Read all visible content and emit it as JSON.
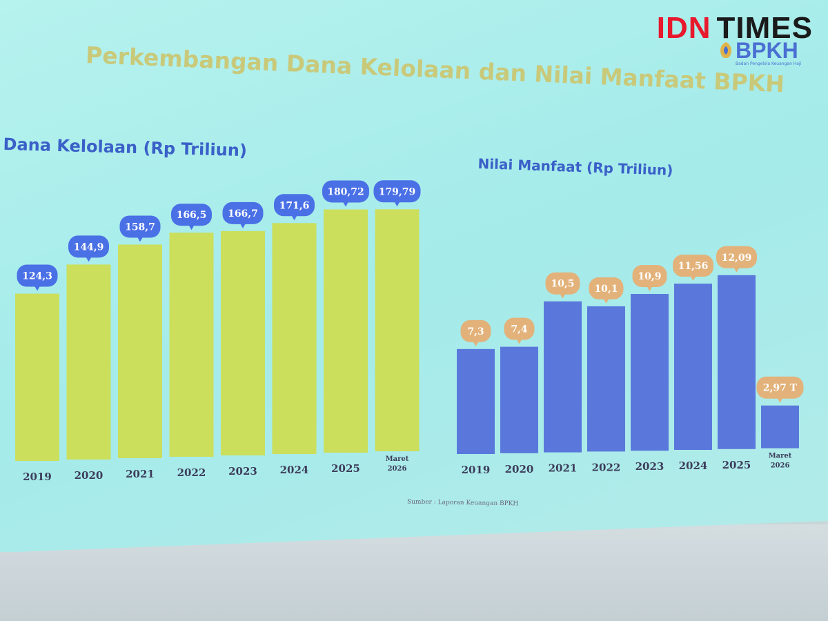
{
  "watermark": {
    "brand_red": "IDN",
    "brand_dark": "TIMES"
  },
  "logo": {
    "text": "BPKH",
    "subtitle": "Badan Pengelola Keuangan Haji"
  },
  "title": "Perkembangan Dana Kelolaan dan Nilai Manfaat BPKH",
  "source": "Sumber : Laporan Keuangan BPKH",
  "colors": {
    "bar_left": "#cbdf5c",
    "bar_right": "#5a78dc",
    "label_left_bg": "#4a70e6",
    "label_right_bg": "#e3b27a",
    "title_color": "#c9c97a",
    "subtitle_color": "#3a60c8"
  },
  "chart_data": [
    {
      "type": "bar",
      "title": "Dana Kelolaan (Rp Triliun)",
      "categories": [
        "2019",
        "2020",
        "2021",
        "2022",
        "2023",
        "2024",
        "2025",
        "Maret 2026"
      ],
      "values": [
        124.3,
        144.9,
        158.7,
        166.5,
        166.7,
        171.6,
        180.72,
        179.79
      ],
      "data_labels": [
        "124,3",
        "144,9",
        "158,7",
        "166,5",
        "166,7",
        "171,6",
        "180,72",
        "179,79"
      ]
    },
    {
      "type": "bar",
      "title": "Nilai Manfaat (Rp Triliun)",
      "categories": [
        "2019",
        "2020",
        "2021",
        "2022",
        "2023",
        "2024",
        "2025",
        "Maret 2026"
      ],
      "values": [
        7.3,
        7.4,
        10.5,
        10.1,
        10.9,
        11.56,
        12.09,
        2.97
      ],
      "data_labels": [
        "7,3",
        "7,4",
        "10,5",
        "10,1",
        "10,9",
        "11,56",
        "12,09",
        "2,97 T"
      ]
    }
  ]
}
